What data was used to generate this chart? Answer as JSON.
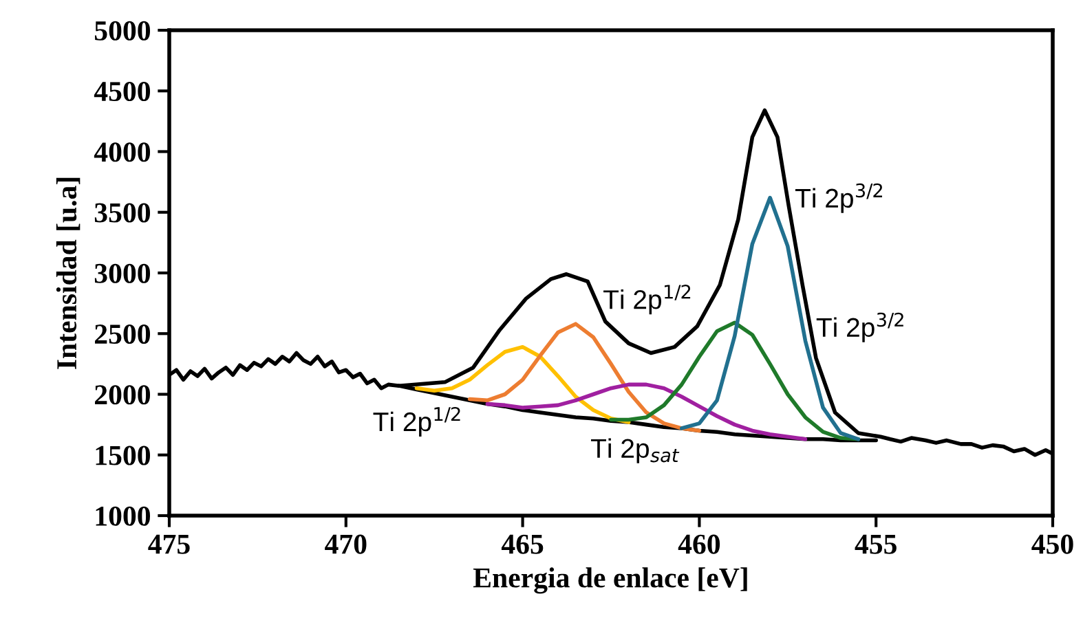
{
  "chart_data": {
    "type": "line",
    "xlabel": "Energia de enlace [eV]",
    "ylabel": "Intensidad [u.a]",
    "xlim": [
      475,
      450
    ],
    "ylim": [
      1000,
      5000
    ],
    "xticks": [
      475,
      470,
      465,
      460,
      455,
      450
    ],
    "yticks": [
      1000,
      1500,
      2000,
      2500,
      3000,
      3500,
      4000,
      4500,
      5000
    ],
    "grid": false,
    "legend": false,
    "series": [
      {
        "color": "#000000",
        "x": [
          475,
          474.8,
          474.6,
          474.4,
          474.2,
          474,
          473.8,
          473.6,
          473.4,
          473.2,
          473,
          472.8,
          472.6,
          472.4,
          472.2,
          472,
          471.8,
          471.6,
          471.4,
          471.2,
          471,
          470.8,
          470.6,
          470.4,
          470.2,
          470,
          469.8,
          469.6,
          469.4,
          469.2,
          469,
          468.8,
          468.5,
          467.2,
          466.4,
          465.65,
          464.9,
          464.2,
          463.76,
          463.16,
          462.66,
          462,
          461.37,
          460.7,
          460.06,
          459.42,
          458.9,
          458.5,
          458.15,
          457.79,
          457.47,
          457.08,
          456.7,
          456.16,
          455.5,
          454.87,
          454.6,
          454.3,
          454,
          453.6,
          453.3,
          453,
          452.6,
          452.3,
          452,
          451.7,
          451.4,
          451.1,
          450.8,
          450.5,
          450.2,
          450
        ],
        "values": [
          2160,
          2200,
          2120,
          2190,
          2150,
          2210,
          2130,
          2180,
          2220,
          2160,
          2240,
          2200,
          2260,
          2230,
          2290,
          2250,
          2310,
          2270,
          2340,
          2280,
          2250,
          2310,
          2230,
          2270,
          2180,
          2200,
          2140,
          2170,
          2090,
          2120,
          2050,
          2080,
          2070,
          2100,
          2220,
          2530,
          2790,
          2950,
          2990,
          2930,
          2600,
          2420,
          2340,
          2390,
          2560,
          2900,
          3440,
          4120,
          4340,
          4120,
          3550,
          2900,
          2300,
          1850,
          1680,
          1650,
          1630,
          1610,
          1640,
          1620,
          1600,
          1620,
          1590,
          1590,
          1560,
          1580,
          1570,
          1530,
          1550,
          1500,
          1540,
          1510
        ]
      },
      {
        "color": "#000000",
        "x": [
          468.5,
          468,
          467.5,
          467,
          466.5,
          466,
          465.5,
          465,
          464.5,
          464,
          463.5,
          463,
          462.5,
          462,
          461.5,
          461,
          460.5,
          460,
          459.5,
          459,
          458.5,
          458,
          457.5,
          457,
          456.5,
          456,
          455.5,
          455
        ],
        "values": [
          2070,
          2040,
          2010,
          1980,
          1950,
          1920,
          1900,
          1870,
          1850,
          1830,
          1810,
          1800,
          1780,
          1770,
          1750,
          1730,
          1720,
          1700,
          1690,
          1670,
          1660,
          1650,
          1640,
          1630,
          1630,
          1620,
          1620,
          1620
        ]
      },
      {
        "color": "#ffc000",
        "x": [
          468,
          467.5,
          467,
          466.5,
          466,
          465.5,
          465,
          464.5,
          464,
          463.5,
          463,
          462.5,
          462
        ],
        "values": [
          2050,
          2030,
          2050,
          2120,
          2240,
          2350,
          2390,
          2310,
          2150,
          1980,
          1870,
          1800,
          1770
        ]
      },
      {
        "color": "#ed7d31",
        "x": [
          466.5,
          466,
          465.5,
          465,
          464.5,
          464,
          463.5,
          463,
          462.5,
          462,
          461.5,
          461,
          460.5,
          460
        ],
        "values": [
          1960,
          1950,
          2000,
          2120,
          2320,
          2510,
          2580,
          2470,
          2250,
          2020,
          1850,
          1760,
          1720,
          1700
        ]
      },
      {
        "color": "#a020a0",
        "x": [
          466,
          465.5,
          465,
          464.5,
          464,
          463.5,
          463,
          462.5,
          462,
          461.5,
          461,
          460.5,
          460,
          459.5,
          459,
          458.5,
          458,
          457.5,
          457
        ],
        "values": [
          1920,
          1910,
          1890,
          1900,
          1910,
          1950,
          2000,
          2050,
          2080,
          2080,
          2050,
          1980,
          1900,
          1820,
          1750,
          1700,
          1670,
          1650,
          1630
        ]
      },
      {
        "color": "#1f7a2a",
        "x": [
          462.5,
          462,
          461.5,
          461,
          460.5,
          460,
          459.5,
          459,
          458.5,
          458,
          457.5,
          457,
          456.5,
          456,
          455.5
        ],
        "values": [
          1790,
          1790,
          1810,
          1910,
          2080,
          2310,
          2520,
          2590,
          2490,
          2250,
          2000,
          1810,
          1690,
          1640,
          1630
        ]
      },
      {
        "color": "#21708f",
        "x": [
          460.5,
          460,
          459.5,
          459,
          458.5,
          458,
          457.5,
          457,
          456.5,
          456,
          455.5
        ],
        "values": [
          1720,
          1760,
          1950,
          2480,
          3240,
          3620,
          3220,
          2440,
          1890,
          1680,
          1630
        ]
      }
    ],
    "annotations": [
      {
        "text": "Ti 2p$^{1/2}$",
        "x": 468,
        "y": 2040
      },
      {
        "text": "Ti 2p$^{1/2}$",
        "x": 462.73,
        "y": 2780
      },
      {
        "text": "Ti 2p$^{3/2}$",
        "x": 457.3,
        "y": 3615
      },
      {
        "text": "Ti 2p$^{3/2}$",
        "x": 456.7,
        "y": 2550
      },
      {
        "text": "Ti 2p$_{sat}$",
        "x": 462,
        "y": 1770
      }
    ]
  }
}
